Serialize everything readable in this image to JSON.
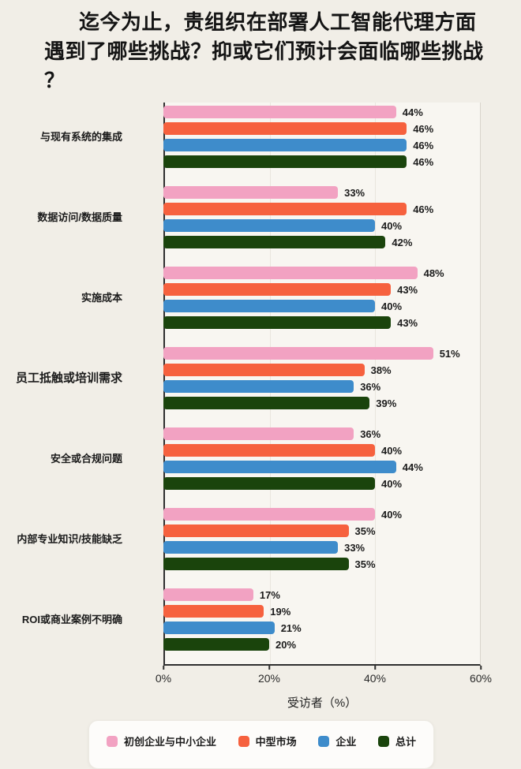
{
  "page": {
    "background_color": "#F1EEE7",
    "plot_background_color": "#F8F6F1",
    "axis_color": "#2F2F2F",
    "gridline_color": "#E9E5DE",
    "plot_right_frame_color": "#D8D4CC",
    "legend_card_color": "#FDFCFA"
  },
  "title_lines": [
    "迄今为止，贵组织在部署人工智能代理方面",
    "遇到了哪些挑战？抑或它们预计会面临哪些挑战",
    "？"
  ],
  "chart_data": {
    "type": "bar",
    "orientation": "horizontal",
    "title": "迄今为止，贵组织在部署人工智能代理方面遇到了哪些挑战？抑或它们预计会面临哪些挑战？",
    "xlabel": "受访者（%）",
    "xlim": [
      0,
      60
    ],
    "x_ticks": [
      {
        "value": 0,
        "label": "0%"
      },
      {
        "value": 20,
        "label": "20%"
      },
      {
        "value": 40,
        "label": "40%"
      },
      {
        "value": 60,
        "label": "60%"
      }
    ],
    "gridline_values": [
      20,
      40
    ],
    "grid": true,
    "legend_position": "bottom",
    "value_suffix": "%",
    "categories": [
      {
        "label": "与现有系统的集成",
        "emphasis": false
      },
      {
        "label": "数据访问/数据质量",
        "emphasis": false
      },
      {
        "label": "实施成本",
        "emphasis": false
      },
      {
        "label": "员工抵触或培训需求",
        "emphasis": true
      },
      {
        "label": "安全或合规问题",
        "emphasis": false
      },
      {
        "label": "内部专业知识/技能缺乏",
        "emphasis": false
      },
      {
        "label": "ROI或商业案例不明确",
        "emphasis": false
      }
    ],
    "series": [
      {
        "name": "初创企业与中小企业",
        "color": "#F2A2C2",
        "values": [
          44,
          33,
          48,
          51,
          36,
          40,
          17
        ]
      },
      {
        "name": "中型市场",
        "color": "#F6613E",
        "values": [
          46,
          46,
          43,
          38,
          40,
          35,
          19
        ]
      },
      {
        "name": "企业",
        "color": "#3E8CCB",
        "values": [
          46,
          40,
          40,
          36,
          44,
          33,
          21
        ]
      },
      {
        "name": "总计",
        "color": "#1A440C",
        "values": [
          46,
          42,
          43,
          39,
          40,
          35,
          20
        ]
      }
    ]
  }
}
